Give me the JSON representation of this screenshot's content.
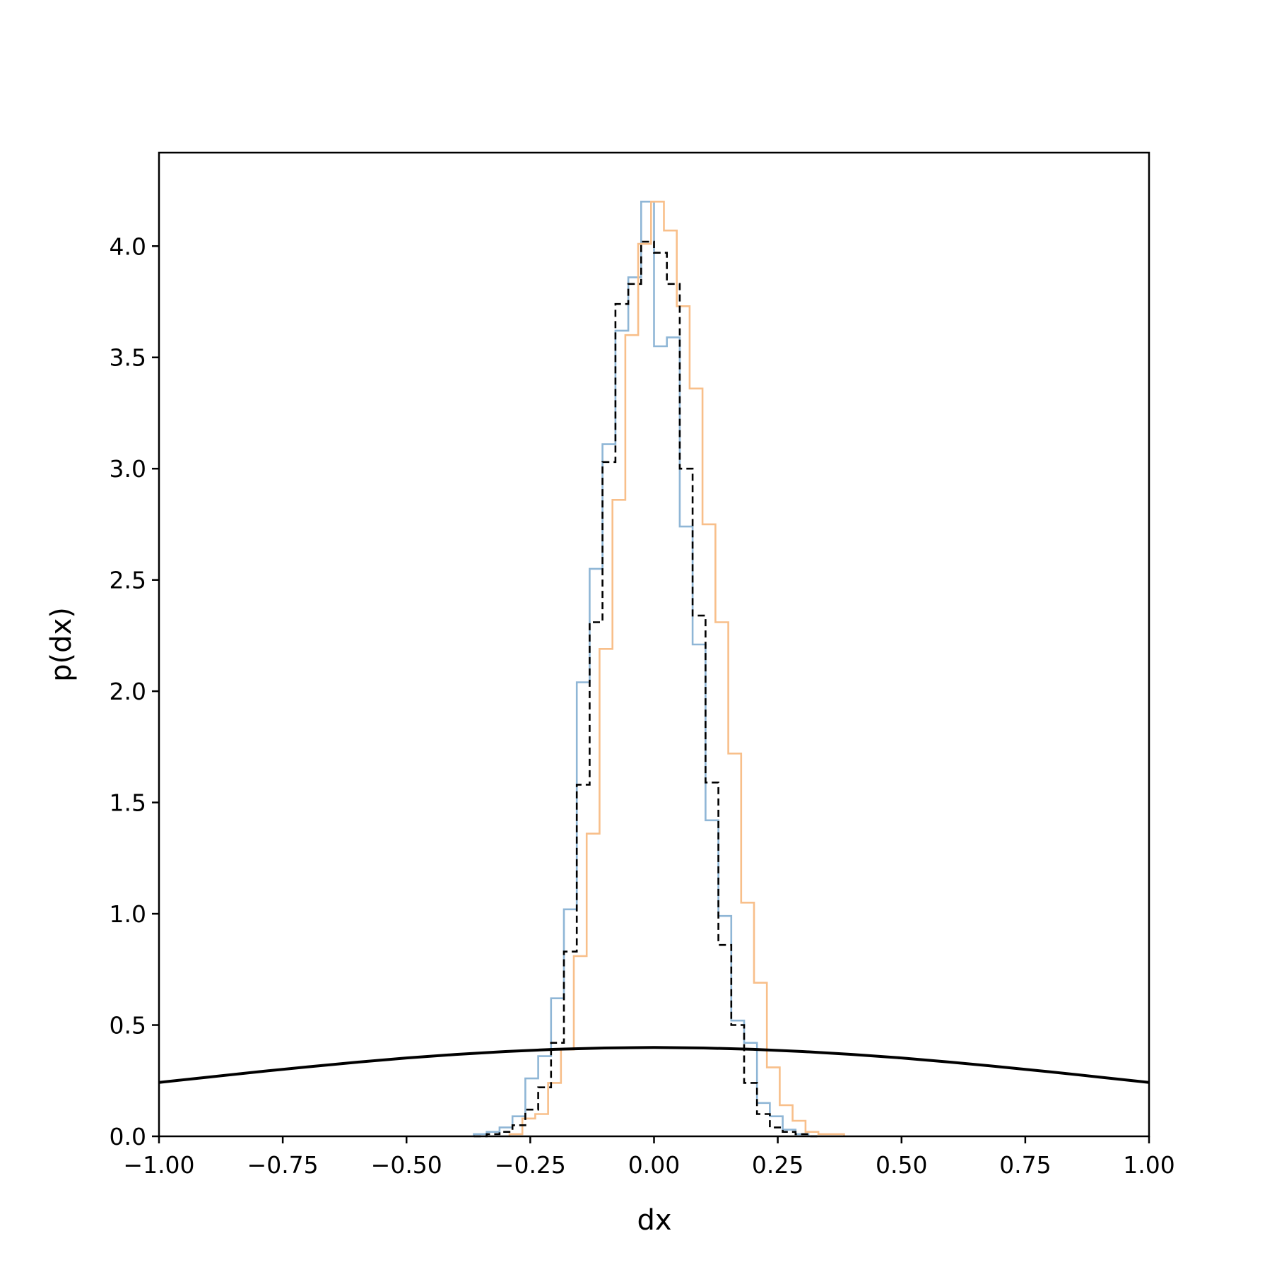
{
  "chart_data": {
    "type": "line",
    "title": "",
    "xlabel": "dx",
    "ylabel": "p(dx)",
    "xlim": [
      -1.0,
      1.0
    ],
    "ylim": [
      0.0,
      4.42
    ],
    "grid": false,
    "legend": "none",
    "x_ticks": [
      -1.0,
      -0.75,
      -0.5,
      -0.25,
      0.0,
      0.25,
      0.5,
      0.75,
      1.0
    ],
    "x_tick_labels": [
      "−1.00",
      "−0.75",
      "−0.50",
      "−0.25",
      "0.00",
      "0.25",
      "0.50",
      "0.75",
      "1.00"
    ],
    "y_ticks": [
      0.0,
      0.5,
      1.0,
      1.5,
      2.0,
      2.5,
      3.0,
      3.5,
      4.0
    ],
    "y_tick_labels": [
      "0.0",
      "0.5",
      "1.0",
      "1.5",
      "2.0",
      "2.5",
      "3.0",
      "3.5",
      "4.0"
    ],
    "series": [
      {
        "kind": "step-histogram",
        "color": "#8fb6d6",
        "linestyle": "solid",
        "bin_edges": [
          -0.364,
          -0.338,
          -0.312,
          -0.286,
          -0.26,
          -0.234,
          -0.208,
          -0.182,
          -0.156,
          -0.13,
          -0.104,
          -0.078,
          -0.052,
          -0.026,
          0.0,
          0.026,
          0.052,
          0.078,
          0.104,
          0.13,
          0.156,
          0.182,
          0.208,
          0.234,
          0.26,
          0.286,
          0.312
        ],
        "values": [
          0.01,
          0.02,
          0.04,
          0.09,
          0.26,
          0.36,
          0.62,
          1.02,
          2.04,
          2.55,
          3.11,
          3.62,
          3.86,
          4.2,
          3.55,
          3.59,
          2.74,
          2.21,
          1.42,
          0.99,
          0.52,
          0.42,
          0.15,
          0.09,
          0.03,
          0.01
        ]
      },
      {
        "kind": "step-histogram",
        "color": "#f8bf8a",
        "linestyle": "solid",
        "bin_edges": [
          -0.292,
          -0.266,
          -0.24,
          -0.214,
          -0.188,
          -0.162,
          -0.136,
          -0.11,
          -0.084,
          -0.058,
          -0.032,
          -0.006,
          0.02,
          0.046,
          0.072,
          0.098,
          0.124,
          0.15,
          0.176,
          0.202,
          0.228,
          0.254,
          0.28,
          0.306,
          0.332,
          0.358,
          0.384
        ],
        "values": [
          0.01,
          0.08,
          0.1,
          0.24,
          0.39,
          0.81,
          1.36,
          2.19,
          2.86,
          3.6,
          4.01,
          4.2,
          4.07,
          3.73,
          3.36,
          2.75,
          2.31,
          1.72,
          1.05,
          0.69,
          0.31,
          0.14,
          0.07,
          0.02,
          0.01,
          0.01
        ]
      },
      {
        "kind": "step-histogram",
        "color": "#000000",
        "linestyle": "dashed",
        "bin_edges": [
          -0.364,
          -0.338,
          -0.312,
          -0.286,
          -0.26,
          -0.234,
          -0.208,
          -0.182,
          -0.156,
          -0.13,
          -0.104,
          -0.078,
          -0.052,
          -0.026,
          0.0,
          0.026,
          0.052,
          0.078,
          0.104,
          0.13,
          0.156,
          0.182,
          0.208,
          0.234,
          0.26,
          0.286,
          0.312,
          0.338
        ],
        "values": [
          0.0,
          0.01,
          0.02,
          0.05,
          0.12,
          0.22,
          0.42,
          0.83,
          1.58,
          2.31,
          3.03,
          3.74,
          3.83,
          4.02,
          3.97,
          3.83,
          3.0,
          2.34,
          1.59,
          0.86,
          0.5,
          0.24,
          0.1,
          0.04,
          0.02,
          0.01,
          0.0
        ]
      },
      {
        "kind": "curve",
        "color": "#000000",
        "linestyle": "solid",
        "x": [
          -1.0,
          -0.9,
          -0.8,
          -0.7,
          -0.6,
          -0.5,
          -0.4,
          -0.3,
          -0.2,
          -0.1,
          0.0,
          0.1,
          0.2,
          0.3,
          0.4,
          0.5,
          0.6,
          0.7,
          0.8,
          0.9,
          1.0
        ],
        "y": [
          0.242,
          0.266,
          0.29,
          0.312,
          0.333,
          0.352,
          0.368,
          0.381,
          0.391,
          0.397,
          0.399,
          0.397,
          0.391,
          0.381,
          0.368,
          0.352,
          0.333,
          0.312,
          0.29,
          0.266,
          0.242
        ]
      }
    ]
  }
}
